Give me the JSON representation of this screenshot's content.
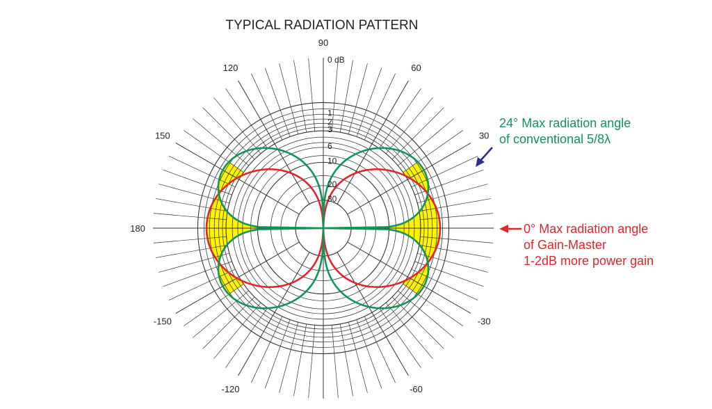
{
  "chart_data": {
    "type": "polar",
    "title": "TYPICAL RADIATION PATTERN",
    "angle_ticks": [
      "90",
      "60",
      "30",
      "-30",
      "-60",
      "-120",
      "-150",
      "180",
      "150",
      "120"
    ],
    "angle_values_deg": [
      90,
      60,
      30,
      -30,
      -60,
      -120,
      -150,
      180,
      150,
      120
    ],
    "db_ticks": [
      "0 dB",
      "1",
      "2",
      "3",
      "6",
      "10",
      "20",
      "30"
    ],
    "db_values": [
      0,
      1,
      2,
      3,
      6,
      10,
      20,
      30
    ],
    "radial_scale": "log",
    "grid": true,
    "series": [
      {
        "label": "conventional 5/8λ",
        "color": "#12935a",
        "max_angle_deg": 24,
        "max_db": 0
      },
      {
        "label": "Gain-Master",
        "color": "#e0262d",
        "max_angle_deg": 0,
        "max_db": 0
      }
    ],
    "fill_color": "#fff200",
    "annotations": [
      {
        "lines": [
          "24° Max radiation angle",
          "of conventional 5/8λ"
        ],
        "color": "#12935a",
        "arrow_color": "#2b2f8f"
      },
      {
        "lines": [
          "0° Max radiation angle",
          "of Gain-Master",
          "1-2dB more power gain"
        ],
        "color": "#e0262d",
        "arrow_color": "#e0262d"
      }
    ]
  }
}
